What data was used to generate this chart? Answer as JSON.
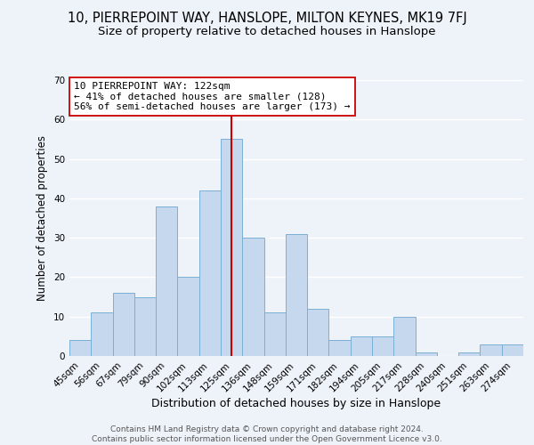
{
  "title": "10, PIERREPOINT WAY, HANSLOPE, MILTON KEYNES, MK19 7FJ",
  "subtitle": "Size of property relative to detached houses in Hanslope",
  "xlabel": "Distribution of detached houses by size in Hanslope",
  "ylabel": "Number of detached properties",
  "footer_line1": "Contains HM Land Registry data © Crown copyright and database right 2024.",
  "footer_line2": "Contains public sector information licensed under the Open Government Licence v3.0.",
  "bin_labels": [
    "45sqm",
    "56sqm",
    "67sqm",
    "79sqm",
    "90sqm",
    "102sqm",
    "113sqm",
    "125sqm",
    "136sqm",
    "148sqm",
    "159sqm",
    "171sqm",
    "182sqm",
    "194sqm",
    "205sqm",
    "217sqm",
    "228sqm",
    "240sqm",
    "251sqm",
    "263sqm",
    "274sqm"
  ],
  "bar_heights": [
    4,
    11,
    16,
    15,
    38,
    20,
    42,
    55,
    30,
    11,
    31,
    12,
    4,
    5,
    5,
    10,
    1,
    0,
    1,
    3,
    3
  ],
  "bar_color": "#c5d8ed",
  "bar_edge_color": "#7aafd4",
  "vline_position": 7.5,
  "vline_color": "#cc0000",
  "annotation_title": "10 PIERREPOINT WAY: 122sqm",
  "annotation_line1": "← 41% of detached houses are smaller (128)",
  "annotation_line2": "56% of semi-detached houses are larger (173) →",
  "annotation_box_edge": "#cc0000",
  "ylim": [
    0,
    70
  ],
  "yticks": [
    0,
    10,
    20,
    30,
    40,
    50,
    60,
    70
  ],
  "background_color": "#eef3fa",
  "plot_background": "#eef3fa",
  "grid_color": "#ffffff",
  "title_fontsize": 10.5,
  "subtitle_fontsize": 9.5,
  "xlabel_fontsize": 9,
  "ylabel_fontsize": 8.5,
  "tick_fontsize": 7.5,
  "footer_fontsize": 6.5
}
